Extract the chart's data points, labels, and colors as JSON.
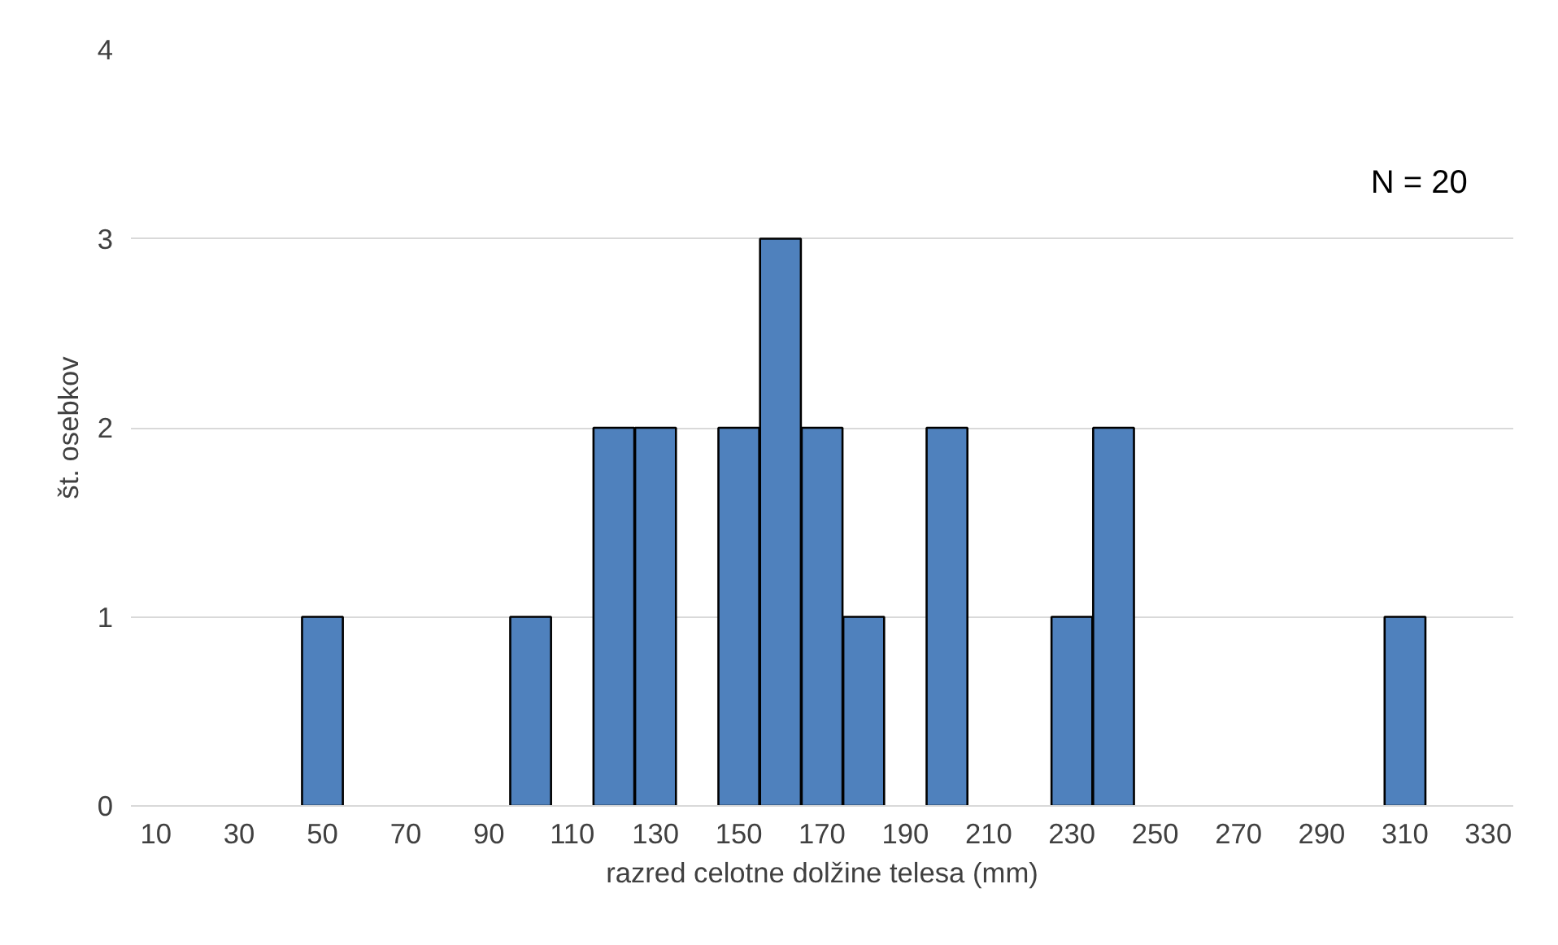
{
  "chart_data": {
    "type": "bar",
    "xlabel": "razred celotne dolžine telesa (mm)",
    "ylabel": "št. osebkov",
    "categories": [
      "10",
      null,
      "30",
      null,
      "50",
      null,
      "70",
      null,
      "90",
      null,
      "110",
      null,
      "130",
      null,
      "150",
      null,
      "170",
      null,
      "190",
      null,
      "210",
      null,
      "230",
      null,
      "250",
      null,
      "270",
      null,
      "290",
      null,
      "310",
      null,
      "330"
    ],
    "values": [
      0,
      0,
      0,
      0,
      1,
      0,
      0,
      0,
      0,
      1,
      0,
      2,
      2,
      0,
      2,
      3,
      2,
      1,
      0,
      2,
      0,
      0,
      1,
      2,
      0,
      0,
      0,
      0,
      0,
      0,
      1,
      0,
      0
    ],
    "color": "#4f81bd",
    "ylim": [
      0,
      4
    ],
    "yticks": [
      0,
      1,
      2,
      3,
      4
    ],
    "grid": "y",
    "annotations": [
      "N = 20"
    ]
  }
}
